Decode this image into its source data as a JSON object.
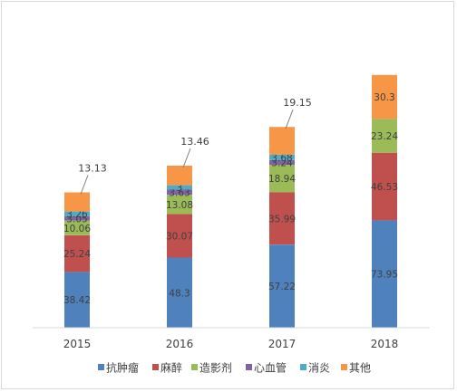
{
  "chart_data": {
    "type": "bar",
    "stacked": true,
    "title": "",
    "xlabel": "",
    "ylabel": "",
    "categories": [
      "2015",
      "2016",
      "2017",
      "2018"
    ],
    "ylim": [
      0,
      220
    ],
    "grid": false,
    "legend_position": "bottom",
    "series": [
      {
        "name": "抗肿瘤",
        "color": "#4F81BD",
        "values": [
          38.42,
          48.3,
          57.22,
          73.95
        ],
        "labels": [
          "38.42",
          "48.3",
          "57.22",
          "73.95"
        ]
      },
      {
        "name": "麻醉",
        "color": "#C0504D",
        "values": [
          25.24,
          30.07,
          35.99,
          46.53
        ],
        "labels": [
          "25.24",
          "30.07",
          "35.99",
          "46.53"
        ]
      },
      {
        "name": "造影剂",
        "color": "#9BBB59",
        "values": [
          10.06,
          13.08,
          18.94,
          23.24
        ],
        "labels": [
          "10.06",
          "13.08",
          "18.94",
          "23.24"
        ]
      },
      {
        "name": "心血管",
        "color": "#8064A2",
        "values": [
          3.05,
          3.63,
          3.24,
          0
        ],
        "labels": [
          "3.05",
          "3.63",
          "3.24",
          ""
        ]
      },
      {
        "name": "消炎",
        "color": "#4BACC6",
        "values": [
          3.26,
          3,
          3.68,
          0
        ],
        "labels": [
          "3.26",
          "3",
          "3.68",
          ""
        ]
      },
      {
        "name": "其他",
        "color": "#F79646",
        "values": [
          13.13,
          13.46,
          19.15,
          30.3
        ],
        "labels": [
          "",
          "",
          "",
          "30.3"
        ],
        "callouts": [
          "13.13",
          "13.46",
          "19.15",
          ""
        ]
      }
    ]
  }
}
